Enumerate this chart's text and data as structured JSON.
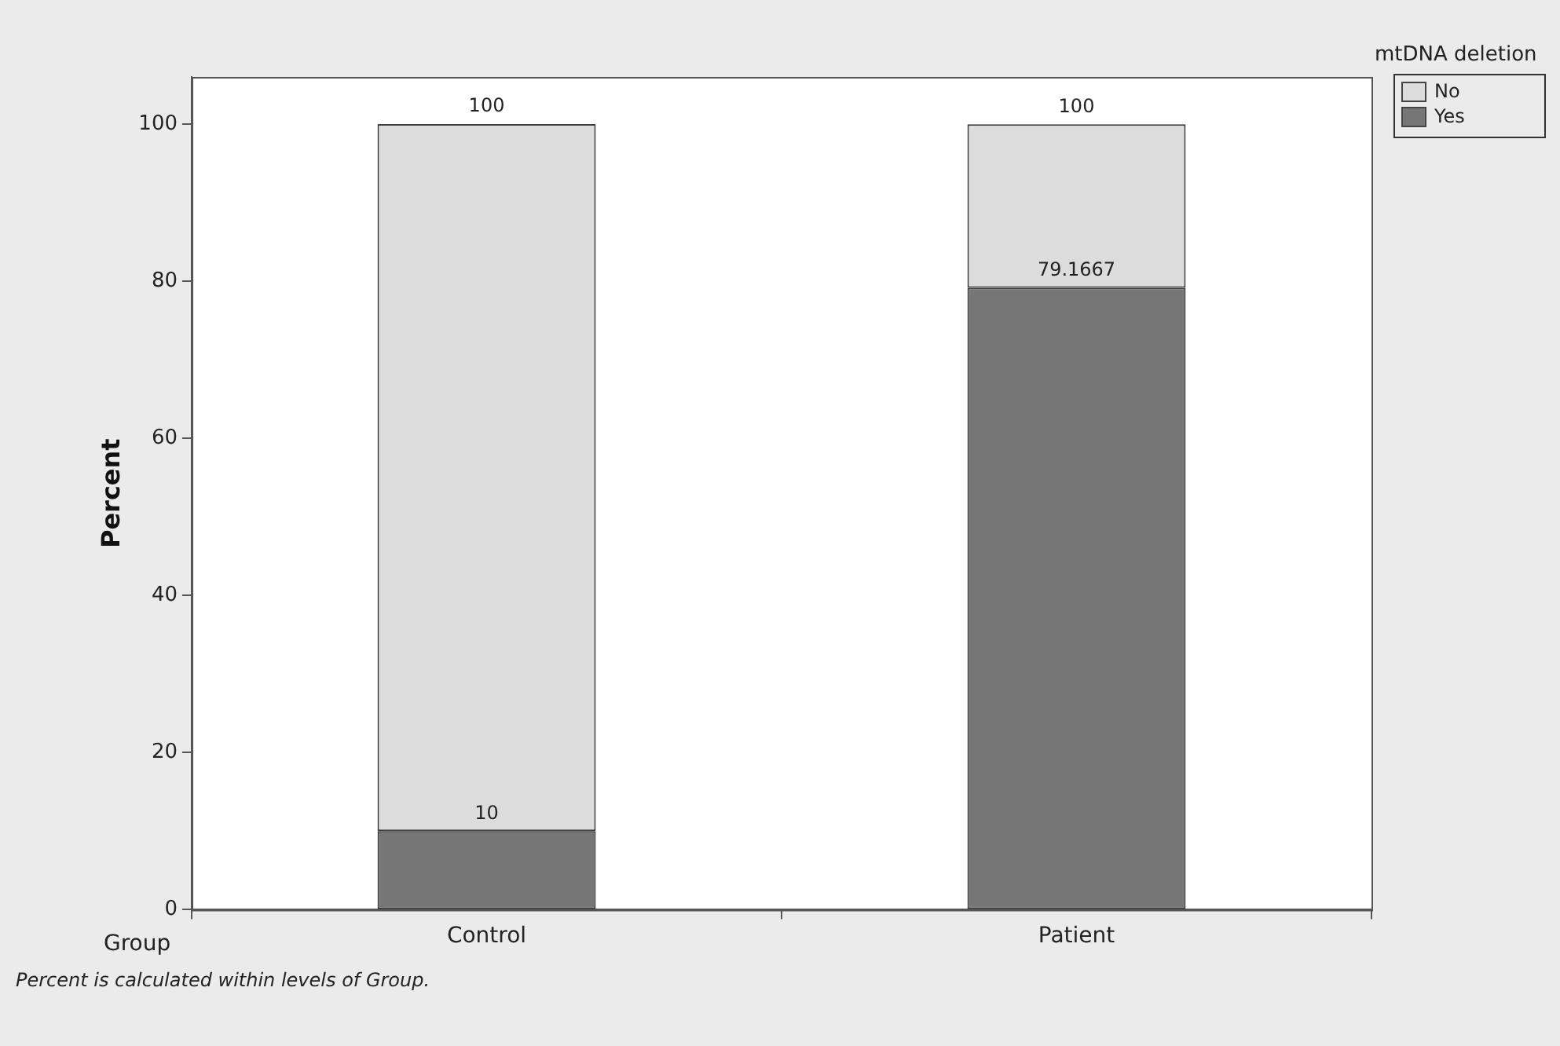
{
  "chart_data": {
    "type": "bar",
    "stacked": true,
    "xlabel": "Group",
    "ylabel": "Percent",
    "legend_title": "mtDNA deletion",
    "legend": "top right",
    "grid": false,
    "categories": [
      "Control",
      "Patient"
    ],
    "series": [
      {
        "name": "Yes",
        "color": "#767676",
        "values": [
          10,
          79.1667
        ],
        "value_labels": [
          "10",
          "79.1667"
        ]
      },
      {
        "name": "No",
        "color": "#dcdcdc",
        "values": [
          90,
          20.8
        ]
      }
    ],
    "totals": [
      "100",
      "100"
    ],
    "ylim": [
      0,
      106
    ],
    "yticks": [
      0,
      20,
      40,
      60,
      80,
      100
    ],
    "annotations": [
      "Percent is calculated within levels of Group."
    ]
  }
}
